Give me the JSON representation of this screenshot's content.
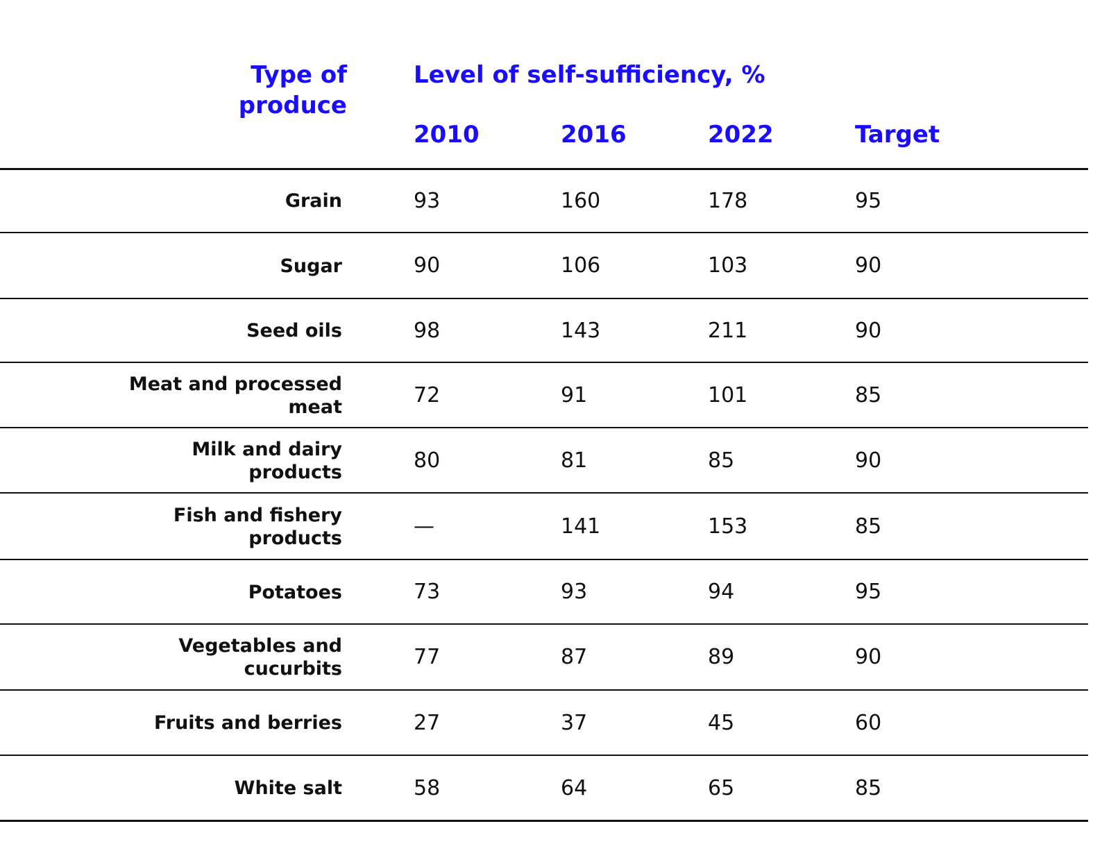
{
  "chart_data": {
    "type": "table",
    "row_header": "Type of produce",
    "group_header": "Level of self-sufficiency, %",
    "columns": [
      "2010",
      "2016",
      "2022",
      "Target"
    ],
    "rows": [
      {
        "label": "Grain",
        "values": [
          "93",
          "160",
          "178",
          "95"
        ]
      },
      {
        "label": "Sugar",
        "values": [
          "90",
          "106",
          "103",
          "90"
        ]
      },
      {
        "label": "Seed oils",
        "values": [
          "98",
          "143",
          "211",
          "90"
        ]
      },
      {
        "label": "Meat and processed meat",
        "values": [
          "72",
          "91",
          "101",
          "85"
        ]
      },
      {
        "label": "Milk and dairy products",
        "values": [
          "80",
          "81",
          "85",
          "90"
        ]
      },
      {
        "label": "Fish and fishery products",
        "values": [
          "—",
          "141",
          "153",
          "85"
        ]
      },
      {
        "label": "Potatoes",
        "values": [
          "73",
          "93",
          "94",
          "95"
        ]
      },
      {
        "label": "Vegetables and cucurbits",
        "values": [
          "77",
          "87",
          "89",
          "90"
        ]
      },
      {
        "label": "Fruits and berries",
        "values": [
          "27",
          "37",
          "45",
          "60"
        ]
      },
      {
        "label": "White salt",
        "values": [
          "58",
          "64",
          "65",
          "85"
        ]
      }
    ],
    "colors": {
      "header": "#1a0dff",
      "text": "#111111",
      "rule": "#111111"
    }
  }
}
